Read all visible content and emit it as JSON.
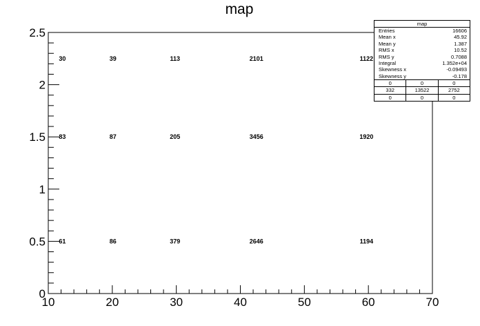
{
  "chart_data": {
    "type": "heatmap",
    "title": "map",
    "xlabel": "",
    "ylabel": "",
    "xlim": [
      10,
      70
    ],
    "ylim": [
      0,
      2.5
    ],
    "x_ticks": [
      "10",
      "20",
      "30",
      "40",
      "50",
      "60",
      "70"
    ],
    "y_ticks": [
      "0",
      "0.5",
      "1",
      "1.5",
      "2",
      "2.5"
    ],
    "cells": [
      {
        "x": 12.2,
        "y": 2.25,
        "label": "30"
      },
      {
        "x": 20.1,
        "y": 2.25,
        "label": "39"
      },
      {
        "x": 29.8,
        "y": 2.25,
        "label": "113"
      },
      {
        "x": 42.5,
        "y": 2.25,
        "label": "2101"
      },
      {
        "x": 59.7,
        "y": 2.25,
        "label": "1122"
      },
      {
        "x": 12.2,
        "y": 1.5,
        "label": "83"
      },
      {
        "x": 20.1,
        "y": 1.5,
        "label": "87"
      },
      {
        "x": 29.8,
        "y": 1.5,
        "label": "205"
      },
      {
        "x": 42.5,
        "y": 1.5,
        "label": "3456"
      },
      {
        "x": 59.7,
        "y": 1.5,
        "label": "1920"
      },
      {
        "x": 12.2,
        "y": 0.5,
        "label": "61"
      },
      {
        "x": 20.1,
        "y": 0.5,
        "label": "86"
      },
      {
        "x": 29.8,
        "y": 0.5,
        "label": "379"
      },
      {
        "x": 42.5,
        "y": 0.5,
        "label": "2646"
      },
      {
        "x": 59.7,
        "y": 0.5,
        "label": "1194"
      }
    ],
    "grid": false
  },
  "stats_box": {
    "title": "map",
    "rows": [
      {
        "label": "Entries",
        "value": "16606"
      },
      {
        "label": "Mean x",
        "value": "45.92"
      },
      {
        "label": "Mean y",
        "value": "1.387"
      },
      {
        "label": "RMS x",
        "value": "10.52"
      },
      {
        "label": "RMS y",
        "value": "0.7088"
      },
      {
        "label": "Integral",
        "value": "1.352e+04"
      },
      {
        "label": "Skewness x",
        "value": "-0.09493"
      },
      {
        "label": "Skewness y",
        "value": "-0.178"
      }
    ],
    "grid": [
      [
        "0",
        "0",
        "0"
      ],
      [
        "332",
        "13522",
        "2752"
      ],
      [
        "0",
        "0",
        "0"
      ]
    ]
  }
}
